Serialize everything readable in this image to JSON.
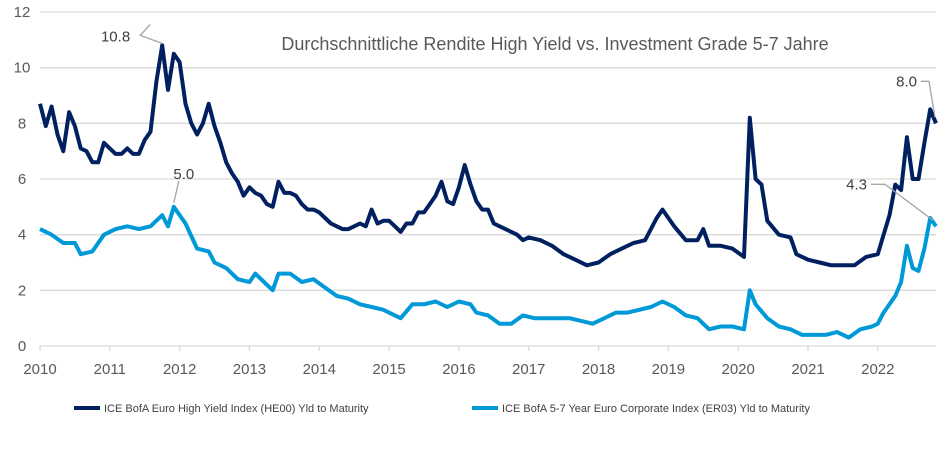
{
  "chart_data": {
    "type": "line",
    "title": "Durchschnittliche Rendite High Yield vs. Investment Grade 5-7 Jahre",
    "xlabel": "",
    "ylabel": "",
    "ylim": [
      0,
      12
    ],
    "yticks": [
      0,
      2,
      4,
      6,
      8,
      10,
      12
    ],
    "xticks": [
      "2010",
      "2011",
      "2012",
      "2013",
      "2014",
      "2015",
      "2016",
      "2017",
      "2018",
      "2019",
      "2020",
      "2021",
      "2022"
    ],
    "xlim": [
      "2010-01",
      "2022-11"
    ],
    "grid": "horizontal",
    "legend_position": "bottom",
    "series": [
      {
        "name": "ICE BofA Euro High Yield Index (HE00) Yld to Maturity",
        "color": "#002060",
        "points": [
          [
            "2010-01",
            8.7
          ],
          [
            "2010-02",
            7.9
          ],
          [
            "2010-03",
            8.6
          ],
          [
            "2010-04",
            7.6
          ],
          [
            "2010-05",
            7.0
          ],
          [
            "2010-06",
            8.4
          ],
          [
            "2010-07",
            7.9
          ],
          [
            "2010-08",
            7.1
          ],
          [
            "2010-09",
            7.0
          ],
          [
            "2010-10",
            6.6
          ],
          [
            "2010-11",
            6.6
          ],
          [
            "2010-12",
            7.3
          ],
          [
            "2011-01",
            7.1
          ],
          [
            "2011-02",
            6.9
          ],
          [
            "2011-03",
            6.9
          ],
          [
            "2011-04",
            7.1
          ],
          [
            "2011-05",
            6.9
          ],
          [
            "2011-06",
            6.9
          ],
          [
            "2011-07",
            7.4
          ],
          [
            "2011-08",
            7.7
          ],
          [
            "2011-09",
            9.5
          ],
          [
            "2011-10",
            10.8
          ],
          [
            "2011-11",
            9.2
          ],
          [
            "2011-12",
            10.5
          ],
          [
            "2012-01",
            10.2
          ],
          [
            "2012-02",
            8.7
          ],
          [
            "2012-03",
            8.0
          ],
          [
            "2012-04",
            7.6
          ],
          [
            "2012-05",
            8.0
          ],
          [
            "2012-06",
            8.7
          ],
          [
            "2012-07",
            7.9
          ],
          [
            "2012-08",
            7.3
          ],
          [
            "2012-09",
            6.6
          ],
          [
            "2012-10",
            6.2
          ],
          [
            "2012-11",
            5.9
          ],
          [
            "2012-12",
            5.4
          ],
          [
            "2013-01",
            5.7
          ],
          [
            "2013-02",
            5.5
          ],
          [
            "2013-03",
            5.4
          ],
          [
            "2013-04",
            5.1
          ],
          [
            "2013-05",
            5.0
          ],
          [
            "2013-06",
            5.9
          ],
          [
            "2013-07",
            5.5
          ],
          [
            "2013-08",
            5.5
          ],
          [
            "2013-09",
            5.4
          ],
          [
            "2013-10",
            5.1
          ],
          [
            "2013-11",
            4.9
          ],
          [
            "2013-12",
            4.9
          ],
          [
            "2014-01",
            4.8
          ],
          [
            "2014-02",
            4.6
          ],
          [
            "2014-03",
            4.4
          ],
          [
            "2014-04",
            4.3
          ],
          [
            "2014-05",
            4.2
          ],
          [
            "2014-06",
            4.2
          ],
          [
            "2014-07",
            4.3
          ],
          [
            "2014-08",
            4.4
          ],
          [
            "2014-09",
            4.3
          ],
          [
            "2014-10",
            4.9
          ],
          [
            "2014-11",
            4.4
          ],
          [
            "2014-12",
            4.5
          ],
          [
            "2015-01",
            4.5
          ],
          [
            "2015-02",
            4.3
          ],
          [
            "2015-03",
            4.1
          ],
          [
            "2015-04",
            4.4
          ],
          [
            "2015-05",
            4.4
          ],
          [
            "2015-06",
            4.8
          ],
          [
            "2015-07",
            4.8
          ],
          [
            "2015-08",
            5.1
          ],
          [
            "2015-09",
            5.4
          ],
          [
            "2015-10",
            5.9
          ],
          [
            "2015-11",
            5.2
          ],
          [
            "2015-12",
            5.1
          ],
          [
            "2016-01",
            5.7
          ],
          [
            "2016-02",
            6.5
          ],
          [
            "2016-03",
            5.8
          ],
          [
            "2016-04",
            5.2
          ],
          [
            "2016-05",
            4.9
          ],
          [
            "2016-06",
            4.9
          ],
          [
            "2016-07",
            4.4
          ],
          [
            "2016-08",
            4.3
          ],
          [
            "2016-09",
            4.2
          ],
          [
            "2016-10",
            4.1
          ],
          [
            "2016-11",
            4.0
          ],
          [
            "2016-12",
            3.8
          ],
          [
            "2017-01",
            3.9
          ],
          [
            "2017-03",
            3.8
          ],
          [
            "2017-05",
            3.6
          ],
          [
            "2017-07",
            3.3
          ],
          [
            "2017-09",
            3.1
          ],
          [
            "2017-11",
            2.9
          ],
          [
            "2018-01",
            3.0
          ],
          [
            "2018-03",
            3.3
          ],
          [
            "2018-05",
            3.5
          ],
          [
            "2018-07",
            3.7
          ],
          [
            "2018-09",
            3.8
          ],
          [
            "2018-11",
            4.6
          ],
          [
            "2018-12",
            4.9
          ],
          [
            "2019-02",
            4.3
          ],
          [
            "2019-04",
            3.8
          ],
          [
            "2019-06",
            3.8
          ],
          [
            "2019-07",
            4.2
          ],
          [
            "2019-08",
            3.6
          ],
          [
            "2019-10",
            3.6
          ],
          [
            "2019-12",
            3.5
          ],
          [
            "2020-02",
            3.2
          ],
          [
            "2020-03",
            8.2
          ],
          [
            "2020-04",
            6.0
          ],
          [
            "2020-05",
            5.8
          ],
          [
            "2020-06",
            4.5
          ],
          [
            "2020-08",
            4.0
          ],
          [
            "2020-10",
            3.9
          ],
          [
            "2020-11",
            3.3
          ],
          [
            "2021-01",
            3.1
          ],
          [
            "2021-03",
            3.0
          ],
          [
            "2021-05",
            2.9
          ],
          [
            "2021-07",
            2.9
          ],
          [
            "2021-09",
            2.9
          ],
          [
            "2021-11",
            3.2
          ],
          [
            "2022-01",
            3.3
          ],
          [
            "2022-02",
            4.0
          ],
          [
            "2022-03",
            4.7
          ],
          [
            "2022-04",
            5.8
          ],
          [
            "2022-05",
            5.6
          ],
          [
            "2022-06",
            7.5
          ],
          [
            "2022-07",
            6.0
          ],
          [
            "2022-08",
            6.0
          ],
          [
            "2022-09",
            7.3
          ],
          [
            "2022-10",
            8.5
          ],
          [
            "2022-11",
            8.0
          ]
        ]
      },
      {
        "name": "ICE BofA 5-7 Year Euro Corporate Index (ER03) Yld to Maturity",
        "color": "#0099D8",
        "points": [
          [
            "2010-01",
            4.2
          ],
          [
            "2010-03",
            4.0
          ],
          [
            "2010-05",
            3.7
          ],
          [
            "2010-07",
            3.7
          ],
          [
            "2010-08",
            3.3
          ],
          [
            "2010-10",
            3.4
          ],
          [
            "2010-12",
            4.0
          ],
          [
            "2011-02",
            4.2
          ],
          [
            "2011-04",
            4.3
          ],
          [
            "2011-06",
            4.2
          ],
          [
            "2011-08",
            4.3
          ],
          [
            "2011-10",
            4.7
          ],
          [
            "2011-11",
            4.3
          ],
          [
            "2011-12",
            5.0
          ],
          [
            "2012-02",
            4.4
          ],
          [
            "2012-04",
            3.5
          ],
          [
            "2012-06",
            3.4
          ],
          [
            "2012-07",
            3.0
          ],
          [
            "2012-09",
            2.8
          ],
          [
            "2012-11",
            2.4
          ],
          [
            "2013-01",
            2.3
          ],
          [
            "2013-02",
            2.6
          ],
          [
            "2013-04",
            2.2
          ],
          [
            "2013-05",
            2.0
          ],
          [
            "2013-06",
            2.6
          ],
          [
            "2013-08",
            2.6
          ],
          [
            "2013-10",
            2.3
          ],
          [
            "2013-12",
            2.4
          ],
          [
            "2014-02",
            2.1
          ],
          [
            "2014-04",
            1.8
          ],
          [
            "2014-06",
            1.7
          ],
          [
            "2014-08",
            1.5
          ],
          [
            "2014-10",
            1.4
          ],
          [
            "2014-12",
            1.3
          ],
          [
            "2015-02",
            1.1
          ],
          [
            "2015-03",
            1.0
          ],
          [
            "2015-05",
            1.5
          ],
          [
            "2015-07",
            1.5
          ],
          [
            "2015-09",
            1.6
          ],
          [
            "2015-11",
            1.4
          ],
          [
            "2016-01",
            1.6
          ],
          [
            "2016-03",
            1.5
          ],
          [
            "2016-04",
            1.2
          ],
          [
            "2016-06",
            1.1
          ],
          [
            "2016-08",
            0.8
          ],
          [
            "2016-10",
            0.8
          ],
          [
            "2016-12",
            1.1
          ],
          [
            "2017-02",
            1.0
          ],
          [
            "2017-04",
            1.0
          ],
          [
            "2017-06",
            1.0
          ],
          [
            "2017-08",
            1.0
          ],
          [
            "2017-10",
            0.9
          ],
          [
            "2017-12",
            0.8
          ],
          [
            "2018-02",
            1.0
          ],
          [
            "2018-04",
            1.2
          ],
          [
            "2018-06",
            1.2
          ],
          [
            "2018-08",
            1.3
          ],
          [
            "2018-10",
            1.4
          ],
          [
            "2018-12",
            1.6
          ],
          [
            "2019-02",
            1.4
          ],
          [
            "2019-04",
            1.1
          ],
          [
            "2019-06",
            1.0
          ],
          [
            "2019-08",
            0.6
          ],
          [
            "2019-10",
            0.7
          ],
          [
            "2019-12",
            0.7
          ],
          [
            "2020-02",
            0.6
          ],
          [
            "2020-03",
            2.0
          ],
          [
            "2020-04",
            1.5
          ],
          [
            "2020-06",
            1.0
          ],
          [
            "2020-08",
            0.7
          ],
          [
            "2020-10",
            0.6
          ],
          [
            "2020-12",
            0.4
          ],
          [
            "2021-02",
            0.4
          ],
          [
            "2021-04",
            0.4
          ],
          [
            "2021-06",
            0.5
          ],
          [
            "2021-08",
            0.3
          ],
          [
            "2021-10",
            0.6
          ],
          [
            "2021-12",
            0.7
          ],
          [
            "2022-01",
            0.8
          ],
          [
            "2022-02",
            1.2
          ],
          [
            "2022-04",
            1.8
          ],
          [
            "2022-05",
            2.3
          ],
          [
            "2022-06",
            3.6
          ],
          [
            "2022-07",
            2.8
          ],
          [
            "2022-08",
            2.7
          ],
          [
            "2022-09",
            3.5
          ],
          [
            "2022-10",
            4.6
          ],
          [
            "2022-11",
            4.3
          ]
        ]
      }
    ],
    "annotations": [
      {
        "text": "10.8",
        "series": 0,
        "x": "2011-10",
        "y": 10.8
      },
      {
        "text": "5.0",
        "series": 1,
        "x": "2011-12",
        "y": 5.0
      },
      {
        "text": "8.0",
        "series": 0,
        "x": "2022-11",
        "y": 8.0
      },
      {
        "text": "4.3",
        "series": 1,
        "x": "2022-11",
        "y": 4.3
      }
    ]
  }
}
